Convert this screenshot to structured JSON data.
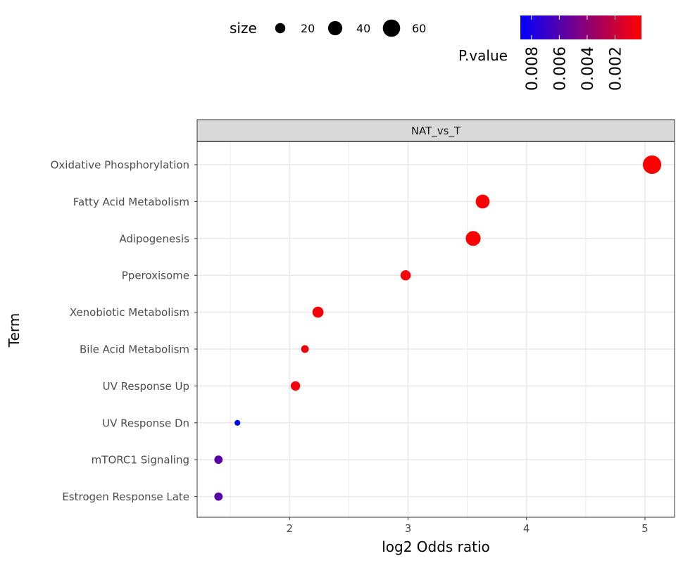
{
  "chart_data": {
    "type": "scatter",
    "facet_label": "NAT_vs_T",
    "xlabel": "log2 Odds ratio",
    "ylabel": "Term",
    "xlim": [
      1.22,
      5.25
    ],
    "x_ticks": [
      2,
      3,
      4,
      5
    ],
    "grid": true,
    "terms": [
      "Oxidative Phosphorylation",
      "Fatty Acid Metabolism",
      "Adipogenesis",
      "Pperoxisome",
      "Xenobiotic Metabolism",
      "Bile Acid Metabolism",
      "UV Response Up",
      "UV Response Dn",
      "mTORC1 Signaling",
      "Estrogen Response Late"
    ],
    "points": [
      {
        "term": "Oxidative Phosphorylation",
        "x": 5.06,
        "size": 68,
        "p_value": 0.0001
      },
      {
        "term": "Fatty Acid Metabolism",
        "x": 3.63,
        "size": 38,
        "p_value": 0.0002
      },
      {
        "term": "Adipogenesis",
        "x": 3.55,
        "size": 44,
        "p_value": 0.0002
      },
      {
        "term": "Pperoxisome",
        "x": 2.98,
        "size": 20,
        "p_value": 0.0003
      },
      {
        "term": "Xenobiotic Metabolism",
        "x": 2.24,
        "size": 24,
        "p_value": 0.0004
      },
      {
        "term": "Bile Acid Metabolism",
        "x": 2.13,
        "size": 11,
        "p_value": 0.0006
      },
      {
        "term": "UV Response Up",
        "x": 2.05,
        "size": 17,
        "p_value": 0.0005
      },
      {
        "term": "UV Response Dn",
        "x": 1.56,
        "size": 6,
        "p_value": 0.0088
      },
      {
        "term": "mTORC1 Signaling",
        "x": 1.4,
        "size": 13,
        "p_value": 0.0058
      },
      {
        "term": "Estrogen Response Late",
        "x": 1.4,
        "size": 13,
        "p_value": 0.0058
      }
    ],
    "size_legend": {
      "title": "size",
      "values": [
        20,
        40,
        60
      ],
      "labels": [
        "20",
        "40",
        "60"
      ]
    },
    "color_legend": {
      "title": "P.value",
      "low_color": "#FF0000",
      "high_color": "#0000FF",
      "range": [
        0.0001,
        0.0088
      ],
      "ticks": [
        0.008,
        0.006,
        0.004,
        0.002
      ],
      "tick_labels": [
        "0.008",
        "0.006",
        "0.004",
        "0.002"
      ]
    }
  }
}
